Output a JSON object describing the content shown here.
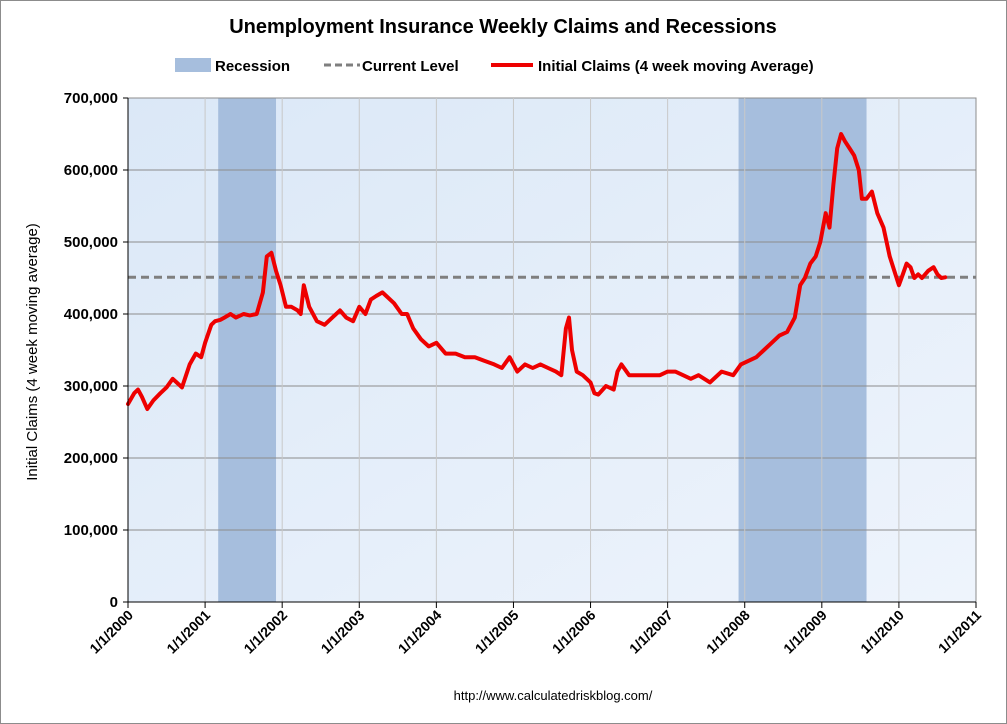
{
  "chart_data": {
    "type": "line",
    "title": "Unemployment Insurance Weekly Claims and Recessions",
    "ylabel": "Initial Claims (4 week moving average)",
    "xlabel": "",
    "source": "http://www.calculatedriskblog.com/",
    "ylim": [
      0,
      700000
    ],
    "xlim": [
      2000,
      2011
    ],
    "ytick_values": [
      0,
      100000,
      200000,
      300000,
      400000,
      500000,
      600000,
      700000
    ],
    "ytick_labels": [
      "0",
      "100,000",
      "200,000",
      "300,000",
      "400,000",
      "500,000",
      "600,000",
      "700,000"
    ],
    "xtick_values": [
      2000,
      2001,
      2002,
      2003,
      2004,
      2005,
      2006,
      2007,
      2008,
      2009,
      2010,
      2011
    ],
    "xtick_labels": [
      "1/1/2000",
      "1/1/2001",
      "1/1/2002",
      "1/1/2003",
      "1/1/2004",
      "1/1/2005",
      "1/1/2006",
      "1/1/2007",
      "1/1/2008",
      "1/1/2009",
      "1/1/2010",
      "1/1/2011"
    ],
    "legend": {
      "placement": "top",
      "entries": [
        {
          "name": "Recession",
          "style": "band"
        },
        {
          "name": "Current Level",
          "style": "dashed"
        },
        {
          "name": "Initial Claims (4 week moving Average)",
          "style": "solid"
        }
      ]
    },
    "recessions": [
      {
        "start": 2001.17,
        "end": 2001.92
      },
      {
        "start": 2007.92,
        "end": 2009.58
      }
    ],
    "current_level": 451000,
    "series": [
      {
        "name": "Initial Claims (4 week moving Average)",
        "x": [
          2000.0,
          2000.08,
          2000.13,
          2000.18,
          2000.25,
          2000.33,
          2000.42,
          2000.5,
          2000.58,
          2000.63,
          2000.7,
          2000.8,
          2000.88,
          2000.95,
          2001.0,
          2001.08,
          2001.13,
          2001.2,
          2001.25,
          2001.33,
          2001.4,
          2001.5,
          2001.58,
          2001.67,
          2001.75,
          2001.8,
          2001.86,
          2001.92,
          2001.98,
          2002.05,
          2002.12,
          2002.2,
          2002.24,
          2002.28,
          2002.35,
          2002.45,
          2002.55,
          2002.65,
          2002.75,
          2002.83,
          2002.92,
          2003.0,
          2003.08,
          2003.15,
          2003.22,
          2003.3,
          2003.35,
          2003.45,
          2003.55,
          2003.62,
          2003.7,
          2003.8,
          2003.9,
          2004.0,
          2004.12,
          2004.25,
          2004.37,
          2004.5,
          2004.62,
          2004.75,
          2004.85,
          2004.95,
          2005.05,
          2005.15,
          2005.25,
          2005.35,
          2005.45,
          2005.55,
          2005.62,
          2005.68,
          2005.72,
          2005.76,
          2005.82,
          2005.9,
          2006.0,
          2006.05,
          2006.1,
          2006.2,
          2006.3,
          2006.35,
          2006.4,
          2006.5,
          2006.6,
          2006.75,
          2006.9,
          2007.0,
          2007.1,
          2007.2,
          2007.3,
          2007.4,
          2007.55,
          2007.7,
          2007.85,
          2007.95,
          2008.05,
          2008.15,
          2008.25,
          2008.35,
          2008.45,
          2008.55,
          2008.65,
          2008.72,
          2008.78,
          2008.85,
          2008.92,
          2008.98,
          2009.05,
          2009.1,
          2009.15,
          2009.2,
          2009.25,
          2009.3,
          2009.36,
          2009.42,
          2009.48,
          2009.52,
          2009.58,
          2009.65,
          2009.72,
          2009.8,
          2009.88,
          2009.94,
          2010.0,
          2010.05,
          2010.1,
          2010.15,
          2010.2,
          2010.25,
          2010.3,
          2010.38,
          2010.45,
          2010.5,
          2010.55,
          2010.6
        ],
        "values": [
          275000,
          290000,
          295000,
          285000,
          268000,
          280000,
          290000,
          298000,
          310000,
          305000,
          298000,
          330000,
          345000,
          340000,
          360000,
          385000,
          390000,
          392000,
          395000,
          400000,
          395000,
          400000,
          398000,
          400000,
          430000,
          480000,
          485000,
          460000,
          440000,
          410000,
          410000,
          405000,
          400000,
          440000,
          410000,
          390000,
          385000,
          395000,
          405000,
          395000,
          390000,
          410000,
          400000,
          420000,
          425000,
          430000,
          425000,
          415000,
          400000,
          400000,
          380000,
          365000,
          355000,
          360000,
          345000,
          345000,
          340000,
          340000,
          335000,
          330000,
          325000,
          340000,
          320000,
          330000,
          325000,
          330000,
          325000,
          320000,
          315000,
          380000,
          395000,
          350000,
          320000,
          315000,
          305000,
          290000,
          288000,
          300000,
          295000,
          320000,
          330000,
          315000,
          315000,
          315000,
          315000,
          320000,
          320000,
          315000,
          310000,
          315000,
          305000,
          320000,
          315000,
          330000,
          335000,
          340000,
          350000,
          360000,
          370000,
          375000,
          395000,
          440000,
          450000,
          470000,
          480000,
          500000,
          540000,
          520000,
          580000,
          630000,
          650000,
          640000,
          630000,
          620000,
          600000,
          560000,
          560000,
          570000,
          540000,
          520000,
          480000,
          460000,
          440000,
          455000,
          470000,
          465000,
          450000,
          455000,
          450000,
          460000,
          465000,
          455000,
          450000,
          451000
        ]
      }
    ]
  }
}
